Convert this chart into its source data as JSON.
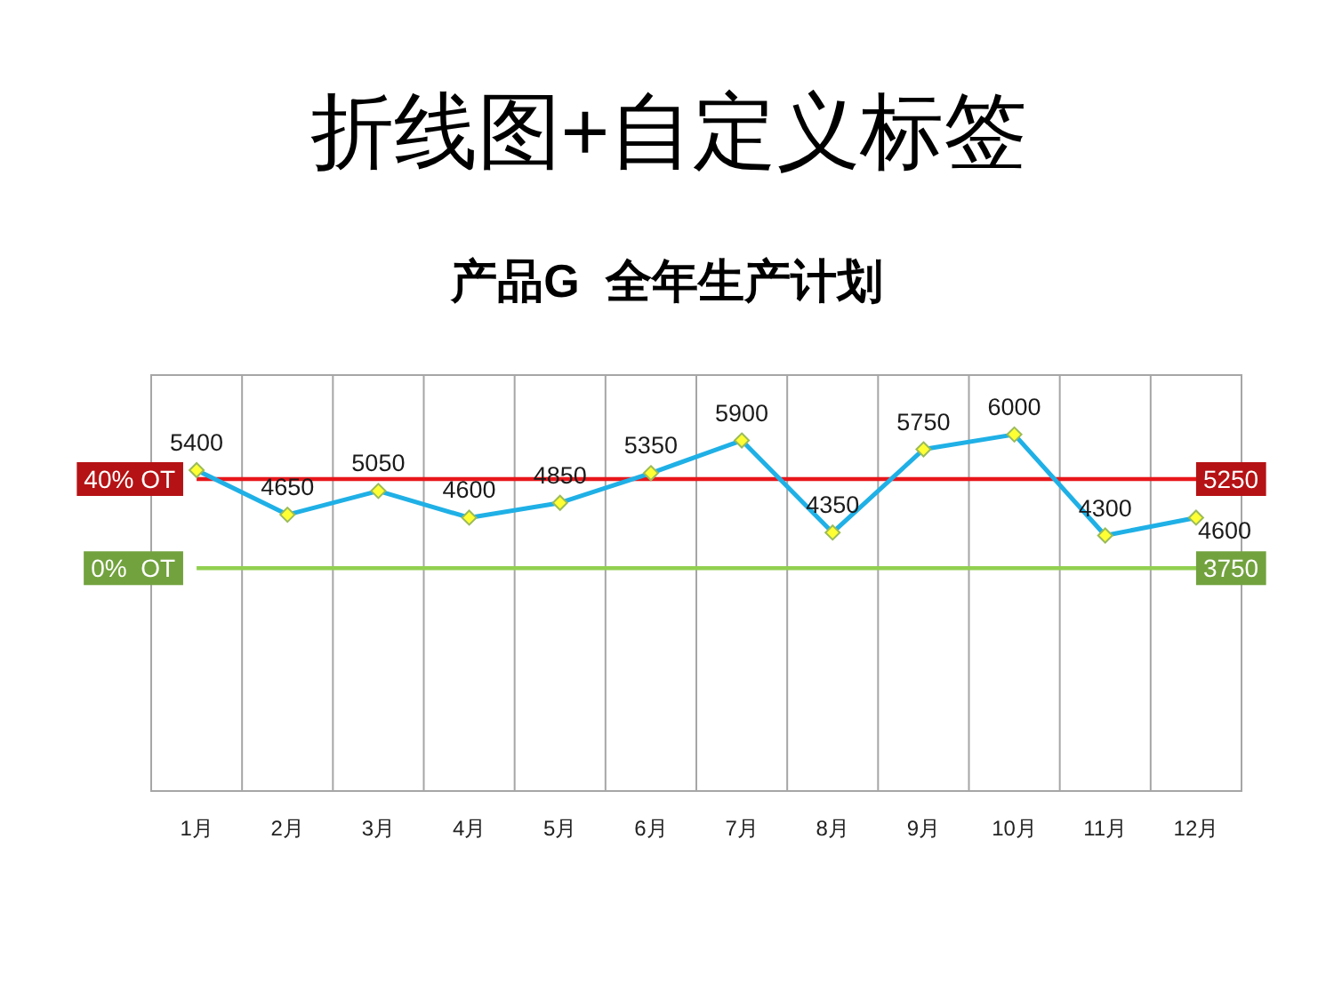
{
  "chart_data": {
    "type": "line",
    "title": "折线图+自定义标签",
    "subtitle": "产品G  全年生产计划",
    "categories": [
      "1月",
      "2月",
      "3月",
      "4月",
      "5月",
      "6月",
      "7月",
      "8月",
      "9月",
      "10月",
      "11月",
      "12月"
    ],
    "series": [
      {
        "color": "#1fb0e6",
        "values": [
          5400,
          4650,
          5050,
          4600,
          4850,
          5350,
          5900,
          4350,
          5750,
          6000,
          4300,
          4600
        ]
      }
    ],
    "ylim": [
      0,
      7000
    ],
    "tick_labels": "x",
    "grid": "x",
    "marker": "diamond",
    "line_style": "solid",
    "data_labels": true,
    "ref_lines": [
      {
        "axis": "y",
        "value": 5250,
        "label": "40% OT",
        "color": "#e8171b"
      },
      {
        "axis": "y",
        "value": 3750,
        "label": "0%  OT",
        "color": "#92d050"
      }
    ],
    "annotations": [
      {
        "text": "5250",
        "y": 5250
      },
      {
        "text": "3750",
        "y": 3750
      }
    ]
  }
}
